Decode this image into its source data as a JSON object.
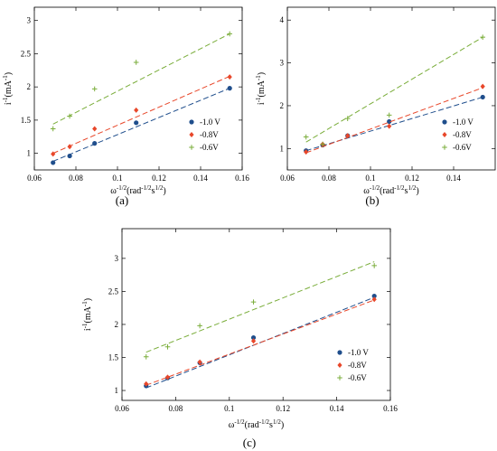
{
  "chart_data": [
    {
      "type": "scatter",
      "caption": "(a)",
      "xlabel_main": "ω",
      "xlabel_sup": "-1/2",
      "xlabel_unit": "(rad",
      "xlabel_unit_sup": "-1/2",
      "xlabel_unit_s": "s",
      "xlabel_unit_s_sup": "1/2",
      "xlabel_close": ")",
      "ylabel_main": "i",
      "ylabel_sup": "-1",
      "ylabel_unit": "(mA",
      "ylabel_unit_sup": "-1",
      "ylabel_close": ")",
      "xlim": [
        0.06,
        0.16
      ],
      "ylim": [
        0.75,
        3.2
      ],
      "xticks": [
        "0.06",
        "0.08",
        "0.1",
        "0.12",
        "0.14",
        "0.16"
      ],
      "xtick_values": [
        0.06,
        0.08,
        0.1,
        0.12,
        0.14,
        0.16
      ],
      "yticks": [
        "1",
        "1.5",
        "2",
        "2.5",
        "3"
      ],
      "ytick_values": [
        1,
        1.5,
        2,
        2.5,
        3
      ],
      "legend_position": "lower-right",
      "series": [
        {
          "name": "-1.0 V",
          "marker": "circle",
          "color": "#1f4e8c",
          "x": [
            0.069,
            0.077,
            0.089,
            0.109,
            0.154
          ],
          "y": [
            0.86,
            0.96,
            1.15,
            1.46,
            1.98
          ],
          "fit": [
            [
              0.069,
              0.88
            ],
            [
              0.154,
              1.98
            ]
          ]
        },
        {
          "name": "-0.8V",
          "marker": "diamond",
          "color": "#e8472a",
          "x": [
            0.069,
            0.077,
            0.089,
            0.109,
            0.154
          ],
          "y": [
            0.99,
            1.1,
            1.37,
            1.65,
            2.15
          ],
          "fit": [
            [
              0.069,
              1.0
            ],
            [
              0.154,
              2.16
            ]
          ]
        },
        {
          "name": "-0.6V",
          "marker": "plus",
          "color": "#7aad3a",
          "x": [
            0.069,
            0.077,
            0.089,
            0.109,
            0.154
          ],
          "y": [
            1.37,
            1.56,
            1.97,
            2.37,
            2.8
          ],
          "fit": [
            [
              0.069,
              1.44
            ],
            [
              0.154,
              2.8
            ]
          ]
        }
      ]
    },
    {
      "type": "scatter",
      "caption": "(b)",
      "xlabel_main": "ω",
      "xlabel_sup": "-1/2",
      "xlabel_unit": "(rad",
      "xlabel_unit_sup": "-1/2",
      "xlabel_unit_s": "s",
      "xlabel_unit_s_sup": "1/2",
      "xlabel_close": ")",
      "ylabel_main": "i",
      "ylabel_sup": "-1",
      "ylabel_unit": "(mA",
      "ylabel_unit_sup": "-1",
      "ylabel_close": ")",
      "xlim": [
        0.06,
        0.16
      ],
      "ylim": [
        0.5,
        4.3
      ],
      "xticks": [
        "0.06",
        "0.08",
        "0.1",
        "0.12",
        "0.14"
      ],
      "xtick_values": [
        0.06,
        0.08,
        0.1,
        0.12,
        0.14
      ],
      "yticks": [
        "1",
        "2",
        "3",
        "4"
      ],
      "ytick_values": [
        1,
        2,
        3,
        4
      ],
      "legend_position": "lower-right",
      "series": [
        {
          "name": "-1.0 V",
          "marker": "circle",
          "color": "#1f4e8c",
          "x": [
            0.069,
            0.077,
            0.089,
            0.109,
            0.154
          ],
          "y": [
            0.95,
            1.08,
            1.3,
            1.63,
            2.2
          ],
          "fit": [
            [
              0.069,
              0.95
            ],
            [
              0.154,
              2.2
            ]
          ]
        },
        {
          "name": "-0.8V",
          "marker": "diamond",
          "color": "#e8472a",
          "x": [
            0.069,
            0.077,
            0.089,
            0.109,
            0.154
          ],
          "y": [
            0.92,
            1.1,
            1.3,
            1.52,
            2.45
          ],
          "fit": [
            [
              0.069,
              0.9
            ],
            [
              0.154,
              2.42
            ]
          ]
        },
        {
          "name": "-0.6V",
          "marker": "plus",
          "color": "#7aad3a",
          "x": [
            0.069,
            0.077,
            0.089,
            0.109,
            0.154
          ],
          "y": [
            1.27,
            1.1,
            1.7,
            1.78,
            3.6
          ],
          "fit": [
            [
              0.069,
              1.15
            ],
            [
              0.154,
              3.6
            ]
          ]
        }
      ]
    },
    {
      "type": "scatter",
      "caption": "(c)",
      "xlabel_main": "ω",
      "xlabel_sup": "-1/2",
      "xlabel_unit": "(rad",
      "xlabel_unit_sup": "-1/2",
      "xlabel_unit_s": "s",
      "xlabel_unit_s_sup": "1/2",
      "xlabel_close": ")",
      "ylabel_main": "i",
      "ylabel_sup": "-1",
      "ylabel_unit": "(mA",
      "ylabel_unit_sup": "-1",
      "ylabel_close": ")",
      "xlim": [
        0.06,
        0.16
      ],
      "ylim": [
        0.85,
        3.45
      ],
      "xticks": [
        "0.06",
        "0.08",
        "0.1",
        "0.12",
        "0.14",
        "0.16"
      ],
      "xtick_values": [
        0.06,
        0.08,
        0.1,
        0.12,
        0.14,
        0.16
      ],
      "yticks": [
        "1",
        "1.5",
        "2",
        "2.5",
        "3"
      ],
      "ytick_values": [
        1,
        1.5,
        2,
        2.5,
        3
      ],
      "legend_position": "lower-right",
      "series": [
        {
          "name": "-1.0 V",
          "marker": "circle",
          "color": "#1f4e8c",
          "x": [
            0.069,
            0.077,
            0.089,
            0.109,
            0.154
          ],
          "y": [
            1.07,
            1.19,
            1.42,
            1.8,
            2.43
          ],
          "fit": [
            [
              0.069,
              1.04
            ],
            [
              0.154,
              2.41
            ]
          ]
        },
        {
          "name": "-0.8V",
          "marker": "diamond",
          "color": "#e8472a",
          "x": [
            0.069,
            0.077,
            0.089,
            0.109,
            0.154
          ],
          "y": [
            1.1,
            1.2,
            1.43,
            1.75,
            2.38
          ],
          "fit": [
            [
              0.069,
              1.08
            ],
            [
              0.154,
              2.37
            ]
          ]
        },
        {
          "name": "-0.6V",
          "marker": "plus",
          "color": "#7aad3a",
          "x": [
            0.069,
            0.077,
            0.089,
            0.109,
            0.154
          ],
          "y": [
            1.51,
            1.66,
            1.98,
            2.34,
            2.89
          ],
          "fit": [
            [
              0.069,
              1.58
            ],
            [
              0.154,
              2.95
            ]
          ]
        }
      ]
    }
  ]
}
